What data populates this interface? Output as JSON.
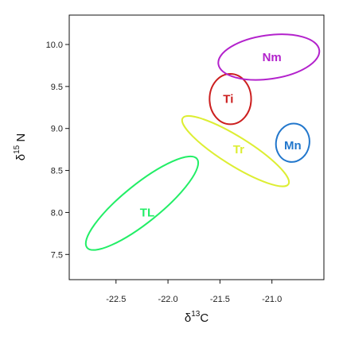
{
  "chart_data": {
    "type": "scatter",
    "title": "",
    "xlabel": {
      "base": "δ",
      "sup": "13",
      "tail": "C"
    },
    "ylabel": {
      "base": "δ",
      "sup": "15",
      "tail": " N"
    },
    "xlim": [
      -22.95,
      -20.5
    ],
    "ylim": [
      7.2,
      10.35
    ],
    "xticks": [
      -22.5,
      -22.0,
      -21.5,
      -21.0
    ],
    "xtick_labels": [
      "-22.5",
      "-22.0",
      "-21.5",
      "-21.0"
    ],
    "yticks": [
      7.5,
      8.0,
      8.5,
      9.0,
      9.5,
      10.0
    ],
    "ytick_labels": [
      "7.5",
      "8.0",
      "8.5",
      "9.0",
      "9.5",
      "10.0"
    ],
    "grid": false,
    "ellipses": [
      {
        "name": "TL",
        "color": "#22ee66",
        "cx": -22.25,
        "cy": 8.11,
        "rx_data": 0.68,
        "ry_data": 0.225,
        "angle_deg": -39,
        "label_x": -22.2,
        "label_y": 8.0
      },
      {
        "name": "Tr",
        "color": "#ddee33",
        "cx": -21.35,
        "cy": 8.73,
        "rx_data": 0.6,
        "ry_data": 0.17,
        "angle_deg": 32,
        "label_x": -21.32,
        "label_y": 8.75
      },
      {
        "name": "Ti",
        "color": "#cc1f1f",
        "cx": -21.4,
        "cy": 9.35,
        "rx_data": 0.2,
        "ry_data": 0.3,
        "angle_deg": 0,
        "label_x": -21.42,
        "label_y": 9.35
      },
      {
        "name": "Nm",
        "color": "#b322cc",
        "cx": -21.03,
        "cy": 9.85,
        "rx_data": 0.49,
        "ry_data": 0.26,
        "angle_deg": -8,
        "label_x": -21.0,
        "label_y": 9.85
      },
      {
        "name": "Mn",
        "color": "#2277cc",
        "cx": -20.8,
        "cy": 8.83,
        "rx_data": 0.16,
        "ry_data": 0.23,
        "angle_deg": 12,
        "label_x": -20.8,
        "label_y": 8.8
      }
    ]
  }
}
